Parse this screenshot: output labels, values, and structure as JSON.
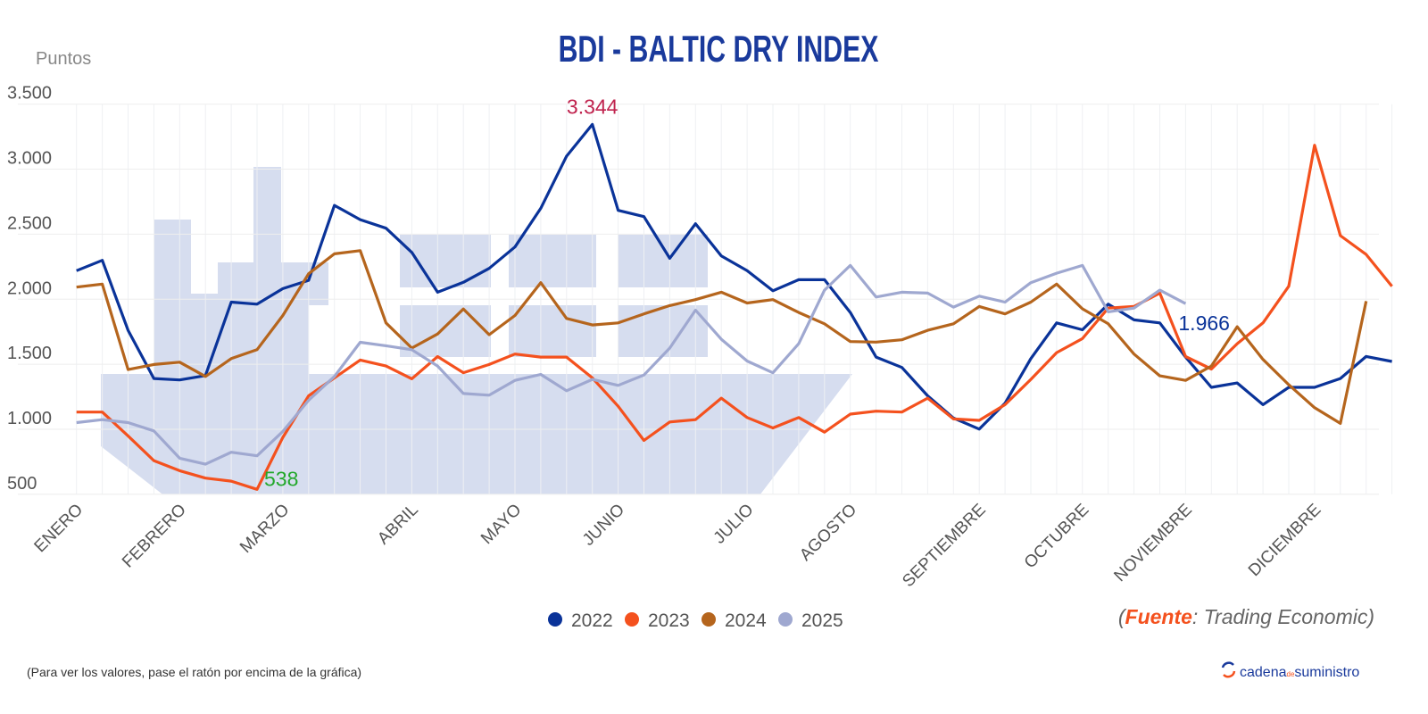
{
  "chart_data": {
    "type": "line",
    "title": "BDI - BALTIC DRY INDEX",
    "ylabel": "Puntos",
    "xlabel": "",
    "ylim": [
      500,
      3500
    ],
    "yticks": [
      500,
      1000,
      1500,
      2000,
      2500,
      3000,
      3500
    ],
    "ytick_labels": [
      "500",
      "1.000",
      "1.500",
      "2.000",
      "2.500",
      "3.000",
      "3.500"
    ],
    "grid": true,
    "legend_position": "bottom-center",
    "x_count": 52,
    "x_labels": [
      {
        "index": 0,
        "label": "ENERO"
      },
      {
        "index": 4,
        "label": "FEBRERO"
      },
      {
        "index": 8,
        "label": "MARZO"
      },
      {
        "index": 13,
        "label": "ABRIL"
      },
      {
        "index": 17,
        "label": "MAYO"
      },
      {
        "index": 21,
        "label": "JUNIO"
      },
      {
        "index": 26,
        "label": "JULIO"
      },
      {
        "index": 30,
        "label": "AGOSTO"
      },
      {
        "index": 35,
        "label": "SEPTIEMBRE"
      },
      {
        "index": 39,
        "label": "OCTUBRE"
      },
      {
        "index": 43,
        "label": "NOVIEMBRE"
      },
      {
        "index": 48,
        "label": "DICIEMBRE"
      }
    ],
    "series": [
      {
        "name": "2022",
        "color": "#0a3399",
        "values": [
          2219,
          2299,
          1761,
          1390,
          1379,
          1413,
          1978,
          1962,
          2081,
          2145,
          2722,
          2612,
          2546,
          2360,
          2054,
          2130,
          2237,
          2402,
          2699,
          3100,
          3344,
          2683,
          2635,
          2315,
          2580,
          2333,
          2219,
          2065,
          2150,
          2150,
          1898,
          1555,
          1475,
          1257,
          1086,
          1001,
          1200,
          1543,
          1818,
          1765,
          1962,
          1841,
          1818,
          1555,
          1322,
          1356,
          1189,
          1322,
          1322,
          1390,
          1560,
          1521
        ]
      },
      {
        "name": "2023",
        "color": "#f4511e",
        "values": [
          1132,
          1132,
          949,
          759,
          681,
          624,
          601,
          538,
          937,
          1257,
          1395,
          1532,
          1486,
          1388,
          1559,
          1435,
          1498,
          1578,
          1555,
          1555,
          1395,
          1177,
          914,
          1056,
          1074,
          1239,
          1090,
          1010,
          1090,
          978,
          1116,
          1139,
          1132,
          1239,
          1079,
          1068,
          1189,
          1383,
          1589,
          1697,
          1932,
          1944,
          2047,
          1559,
          1463,
          1658,
          1818,
          2100,
          3184,
          2489,
          2344,
          2100
        ]
      },
      {
        "name": "2024",
        "color": "#b5651d",
        "values": [
          2093,
          2116,
          1459,
          1498,
          1516,
          1406,
          1543,
          1612,
          1875,
          2196,
          2349,
          2374,
          1818,
          1624,
          1733,
          1925,
          1727,
          1875,
          2127,
          1852,
          1802,
          1818,
          1887,
          1951,
          1997,
          2054,
          1971,
          1997,
          1898,
          1811,
          1674,
          1670,
          1688,
          1761,
          1811,
          1944,
          1887,
          1978,
          2116,
          1926,
          1811,
          1578,
          1411,
          1376,
          1486,
          1788,
          1537,
          1342,
          1166,
          1045,
          1985
        ]
      },
      {
        "name": "2025",
        "color": "#9fa8d0",
        "values": [
          1051,
          1074,
          1051,
          987,
          777,
          731,
          823,
          796,
          983,
          1223,
          1406,
          1669,
          1642,
          1612,
          1486,
          1275,
          1262,
          1376,
          1422,
          1296,
          1383,
          1337,
          1417,
          1624,
          1916,
          1692,
          1525,
          1434,
          1658,
          2070,
          2260,
          2017,
          2054,
          2047,
          1939,
          2024,
          1978,
          2127,
          2200,
          2260,
          1903,
          1932,
          2070,
          1966
        ]
      }
    ],
    "annotations": [
      {
        "series": "2022",
        "index": 20,
        "text": "3.344",
        "color": "#c0234e"
      },
      {
        "series": "2023",
        "index": 7,
        "text": "538",
        "color": "#22a82b"
      },
      {
        "series": "2025",
        "index": 43,
        "text": "1.966",
        "color": "#0a3399"
      }
    ]
  },
  "background_color": "#d6ddef",
  "source": {
    "open": "(",
    "label": "Fuente",
    "sep": ":",
    "text": " Trading Economic)",
    "label_color": "#f4511e"
  },
  "footer_note": "(Para ver los valores, pase el ratón por encima de la gráfica)",
  "logo": {
    "part1": "cadena",
    "part2": "de",
    "part3": "suministro",
    "icon": "circular-arrows-icon"
  }
}
